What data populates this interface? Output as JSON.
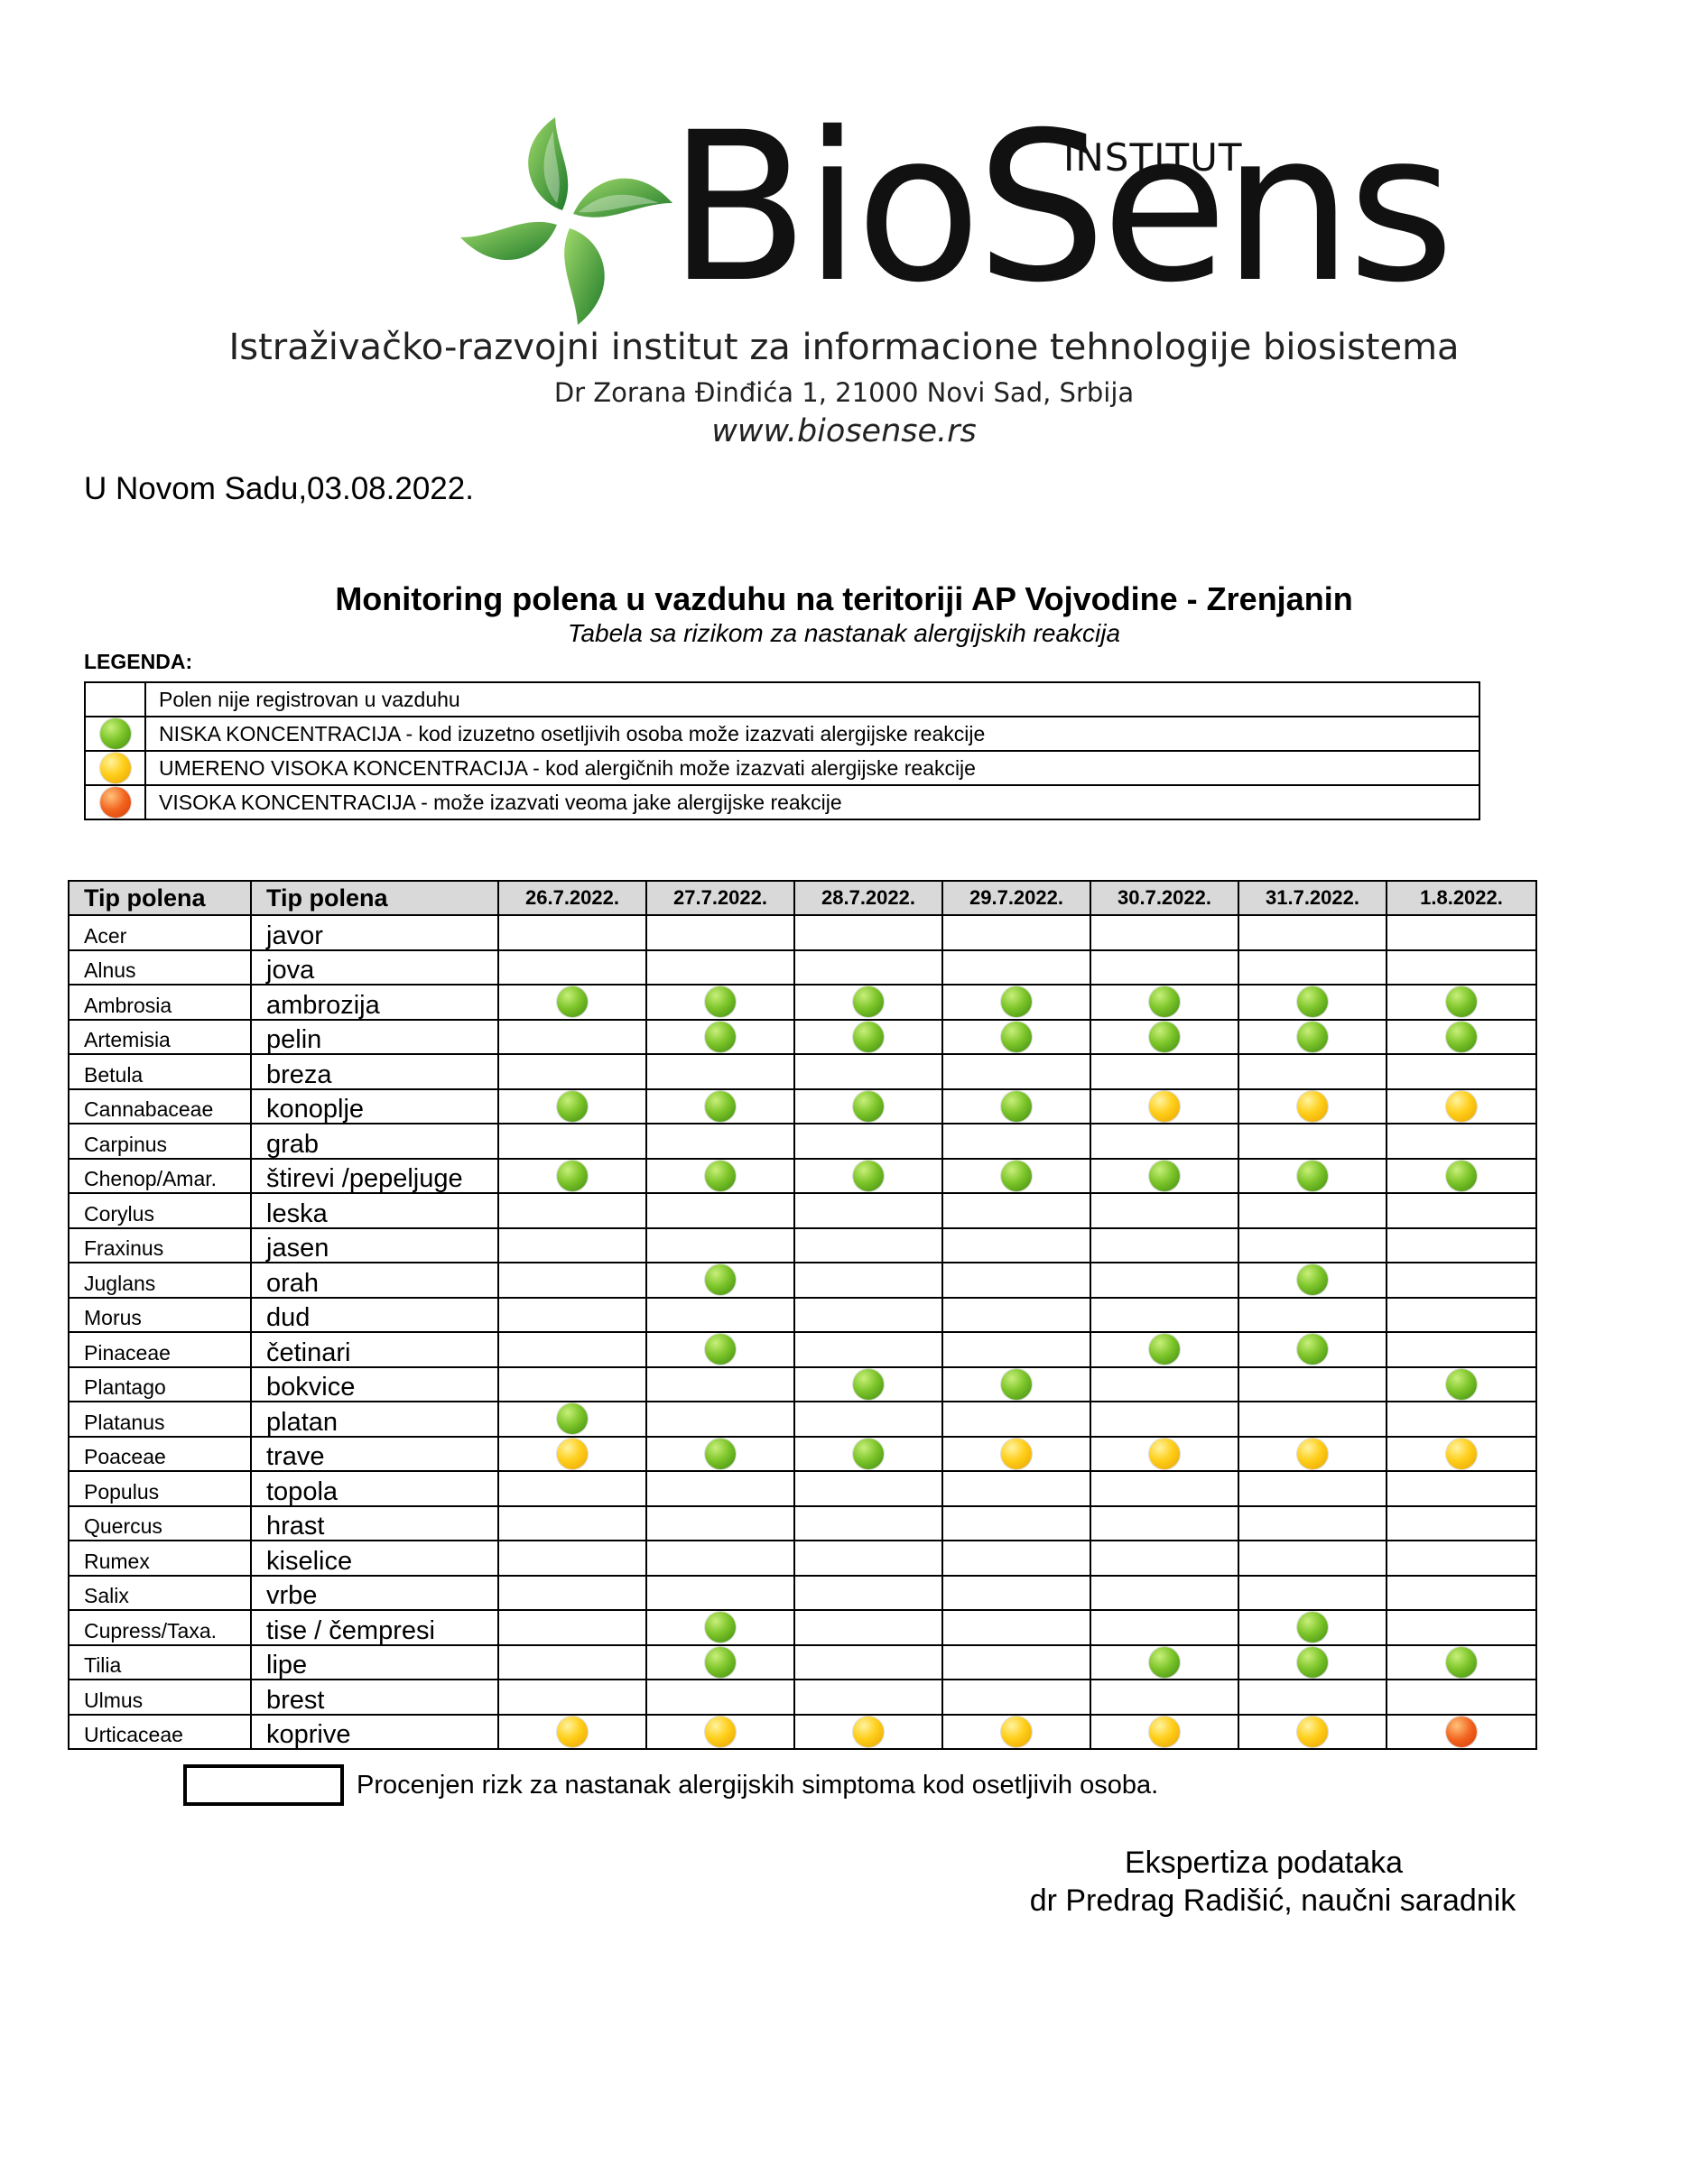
{
  "header": {
    "brand": "BioSens",
    "brand_sub": "INSTITUT",
    "institute_name": "Istraživačko-razvojni institut za informacione tehnologije biosistema",
    "address": "Dr Zorana Đinđića 1, 21000 Novi Sad, Srbija",
    "website": "www.biosense.rs",
    "logo_icon": "pinwheel-leaves-icon"
  },
  "date_line": "U Novom Sadu,03.08.2022.",
  "title": "Monitoring polena u vazduhu na teritoriji AP Vojvodine - Zrenjanin",
  "subtitle": "Tabela sa rizikom za nastanak alergijskih reakcija",
  "legend": {
    "heading": "LEGENDA:",
    "items": [
      {
        "level": "none",
        "text": "Polen nije registrovan u vazduhu"
      },
      {
        "level": "green",
        "text": "NISKA KONCENTRACIJA - kod izuzetno osetljivih osoba može izazvati alergijske reakcije"
      },
      {
        "level": "yellow",
        "text": "UMERENO VISOKA KONCENTRACIJA - kod alergičnih može izazvati alergijske reakcije"
      },
      {
        "level": "orange",
        "text": "VISOKA KONCENTRACIJA - može izazvati veoma jake alergijske reakcije"
      }
    ]
  },
  "colors": {
    "green": "#6cbb22",
    "yellow": "#ffc814",
    "orange": "#ec5417",
    "header_bg": "#d9d9d9"
  },
  "table": {
    "col_latin": "Tip polena",
    "col_local": "Tip polena",
    "dates": [
      "26.7.2022.",
      "27.7.2022.",
      "28.7.2022.",
      "29.7.2022.",
      "30.7.2022.",
      "31.7.2022.",
      "1.8.2022."
    ],
    "rows": [
      {
        "latin": "Acer",
        "local": "javor",
        "levels": [
          "",
          "",
          "",
          "",
          "",
          "",
          ""
        ]
      },
      {
        "latin": "Alnus",
        "local": "jova",
        "levels": [
          "",
          "",
          "",
          "",
          "",
          "",
          ""
        ]
      },
      {
        "latin": "Ambrosia",
        "local": "ambrozija",
        "levels": [
          "green",
          "green",
          "green",
          "green",
          "green",
          "green",
          "green"
        ]
      },
      {
        "latin": "Artemisia",
        "local": "pelin",
        "levels": [
          "",
          "green",
          "green",
          "green",
          "green",
          "green",
          "green"
        ]
      },
      {
        "latin": "Betula",
        "local": "breza",
        "levels": [
          "",
          "",
          "",
          "",
          "",
          "",
          ""
        ]
      },
      {
        "latin": "Cannabaceae",
        "local": "konoplje",
        "levels": [
          "green",
          "green",
          "green",
          "green",
          "yellow",
          "yellow",
          "yellow"
        ]
      },
      {
        "latin": "Carpinus",
        "local": "grab",
        "levels": [
          "",
          "",
          "",
          "",
          "",
          "",
          ""
        ]
      },
      {
        "latin": "Chenop/Amar.",
        "local": "štirevi /pepeljuge",
        "levels": [
          "green",
          "green",
          "green",
          "green",
          "green",
          "green",
          "green"
        ]
      },
      {
        "latin": "Corylus",
        "local": "leska",
        "levels": [
          "",
          "",
          "",
          "",
          "",
          "",
          ""
        ]
      },
      {
        "latin": "Fraxinus",
        "local": "jasen",
        "levels": [
          "",
          "",
          "",
          "",
          "",
          "",
          ""
        ]
      },
      {
        "latin": "Juglans",
        "local": "orah",
        "levels": [
          "",
          "green",
          "",
          "",
          "",
          "green",
          ""
        ]
      },
      {
        "latin": "Morus",
        "local": "dud",
        "levels": [
          "",
          "",
          "",
          "",
          "",
          "",
          ""
        ]
      },
      {
        "latin": "Pinaceae",
        "local": "četinari",
        "levels": [
          "",
          "green",
          "",
          "",
          "green",
          "green",
          ""
        ]
      },
      {
        "latin": "Plantago",
        "local": "bokvice",
        "levels": [
          "",
          "",
          "green",
          "green",
          "",
          "",
          "green"
        ]
      },
      {
        "latin": "Platanus",
        "local": "platan",
        "levels": [
          "green",
          "",
          "",
          "",
          "",
          "",
          ""
        ]
      },
      {
        "latin": "Poaceae",
        "local": "trave",
        "levels": [
          "yellow",
          "green",
          "green",
          "yellow",
          "yellow",
          "yellow",
          "yellow"
        ]
      },
      {
        "latin": "Populus",
        "local": "topola",
        "levels": [
          "",
          "",
          "",
          "",
          "",
          "",
          ""
        ]
      },
      {
        "latin": "Quercus",
        "local": "hrast",
        "levels": [
          "",
          "",
          "",
          "",
          "",
          "",
          ""
        ]
      },
      {
        "latin": "Rumex",
        "local": "kiselice",
        "levels": [
          "",
          "",
          "",
          "",
          "",
          "",
          ""
        ]
      },
      {
        "latin": "Salix",
        "local": "vrbe",
        "levels": [
          "",
          "",
          "",
          "",
          "",
          "",
          ""
        ]
      },
      {
        "latin": "Cupress/Taxa.",
        "local": "tise / čempresi",
        "levels": [
          "",
          "green",
          "",
          "",
          "",
          "green",
          ""
        ]
      },
      {
        "latin": "Tilia",
        "local": "lipe",
        "levels": [
          "",
          "green",
          "",
          "",
          "green",
          "green",
          "green"
        ]
      },
      {
        "latin": "Ulmus",
        "local": "brest",
        "levels": [
          "",
          "",
          "",
          "",
          "",
          "",
          ""
        ]
      },
      {
        "latin": "Urticaceae",
        "local": "koprive",
        "levels": [
          "yellow",
          "yellow",
          "yellow",
          "yellow",
          "yellow",
          "yellow",
          "orange"
        ]
      }
    ]
  },
  "risk_note": "Procenjen rizk za nastanak alergijskih simptoma kod osetljivih osoba.",
  "signature": {
    "line1": "Ekspertiza podataka",
    "line2": "dr Predrag Radišić, naučni saradnik"
  }
}
